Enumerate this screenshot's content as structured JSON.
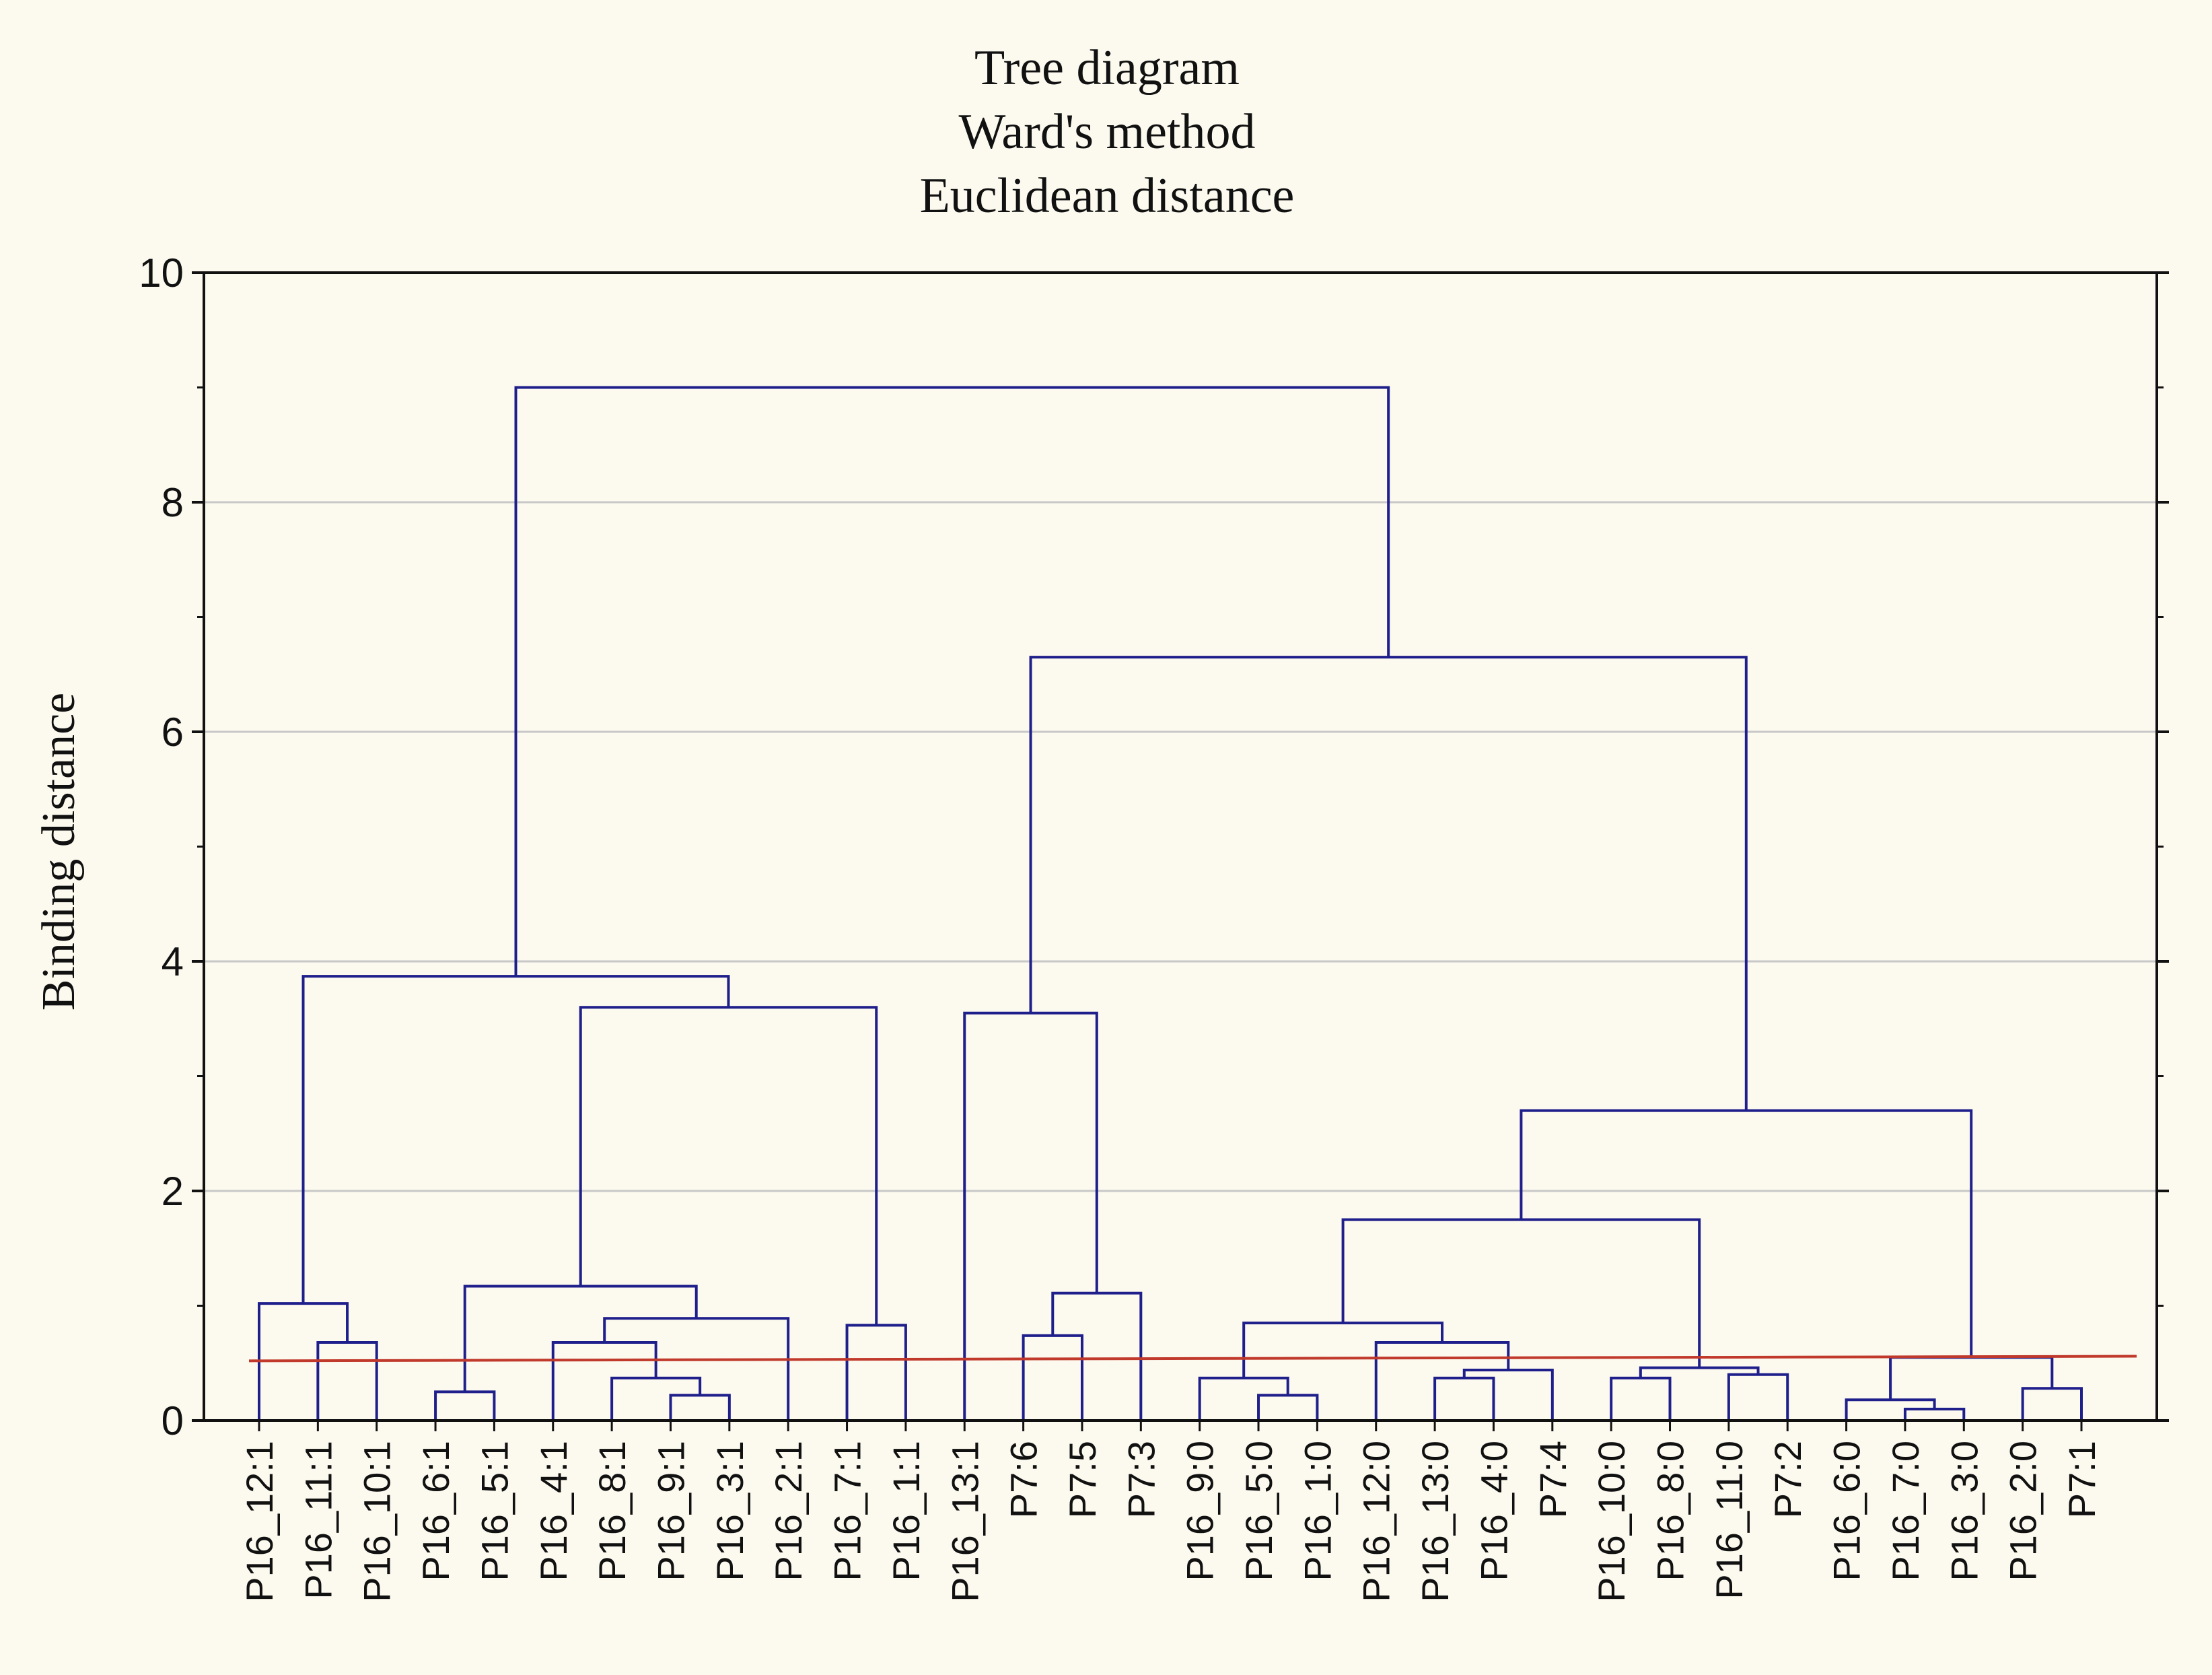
{
  "chart_data": {
    "type": "dendrogram",
    "title_lines": [
      "Tree diagram",
      "Ward's method",
      "Euclidean distance"
    ],
    "ylabel": "Binding distance",
    "xlabel": "",
    "ylim": [
      0,
      10
    ],
    "y_ticks": [
      0,
      2,
      4,
      6,
      8,
      10
    ],
    "grid": "horizontal",
    "colors": {
      "tree": "#1f1f8c",
      "cut_line": "#c0392b",
      "grid": "#c8c8c8",
      "axis": "#111111"
    },
    "leaves": [
      "P16_12:1",
      "P16_11:1",
      "P16_10:1",
      "P16_6:1",
      "P16_5:1",
      "P16_4:1",
      "P16_8:1",
      "P16_9:1",
      "P16_3:1",
      "P16_2:1",
      "P16_7:1",
      "P16_1:1",
      "P16_13:1",
      "P7:6",
      "P7:5",
      "P7:3",
      "P16_9:0",
      "P16_5:0",
      "P16_1:0",
      "P16_12:0",
      "P16_13:0",
      "P16_4:0",
      "P7:4",
      "P16_10:0",
      "P16_8:0",
      "P16_11:0",
      "P7:2",
      "P16_6:0",
      "P16_7:0",
      "P16_3:0",
      "P16_2:0",
      "P7:1"
    ],
    "merges": [
      {
        "a": "P16_11:1",
        "b": "P16_10:1",
        "h": 0.68,
        "id": "m1"
      },
      {
        "a": "P16_12:1",
        "b": "m1",
        "h": 1.02,
        "id": "m2"
      },
      {
        "a": "P16_6:1",
        "b": "P16_5:1",
        "h": 0.25,
        "id": "m3"
      },
      {
        "a": "P16_9:1",
        "b": "P16_3:1",
        "h": 0.22,
        "id": "m4"
      },
      {
        "a": "P16_8:1",
        "b": "m4",
        "h": 0.37,
        "id": "m5"
      },
      {
        "a": "P16_4:1",
        "b": "m5",
        "h": 0.68,
        "id": "m6"
      },
      {
        "a": "m6",
        "b": "P16_2:1",
        "h": 0.89,
        "id": "m7"
      },
      {
        "a": "m3",
        "b": "m7",
        "h": 1.17,
        "id": "m8"
      },
      {
        "a": "P16_7:1",
        "b": "P16_1:1",
        "h": 0.83,
        "id": "m9"
      },
      {
        "a": "m8",
        "b": "m9",
        "h": 3.6,
        "id": "m10"
      },
      {
        "a": "m2",
        "b": "m10",
        "h": 3.87,
        "id": "m11"
      },
      {
        "a": "P7:6",
        "b": "P7:5",
        "h": 0.74,
        "id": "m12"
      },
      {
        "a": "m12",
        "b": "P7:3",
        "h": 1.11,
        "id": "m13"
      },
      {
        "a": "P16_13:1",
        "b": "m13",
        "h": 3.55,
        "id": "m14"
      },
      {
        "a": "P16_5:0",
        "b": "P16_1:0",
        "h": 0.22,
        "id": "m15"
      },
      {
        "a": "P16_9:0",
        "b": "m15",
        "h": 0.37,
        "id": "m16"
      },
      {
        "a": "P16_13:0",
        "b": "P16_4:0",
        "h": 0.37,
        "id": "m17"
      },
      {
        "a": "m17",
        "b": "P7:4",
        "h": 0.44,
        "id": "m18"
      },
      {
        "a": "P16_12:0",
        "b": "m18",
        "h": 0.68,
        "id": "m19"
      },
      {
        "a": "m16",
        "b": "m19",
        "h": 0.85,
        "id": "m20"
      },
      {
        "a": "P16_10:0",
        "b": "P16_8:0",
        "h": 0.37,
        "id": "m21"
      },
      {
        "a": "P16_11:0",
        "b": "P7:2",
        "h": 0.4,
        "id": "m22"
      },
      {
        "a": "m21",
        "b": "m22",
        "h": 0.46,
        "id": "m23"
      },
      {
        "a": "m20",
        "b": "m23",
        "h": 1.75,
        "id": "m24"
      },
      {
        "a": "P16_3:0",
        "b": "P16_7:0",
        "h": 0.1,
        "id": "m25"
      },
      {
        "a": "P16_6:0",
        "b": "m25",
        "h": 0.18,
        "id": "m26"
      },
      {
        "a": "P16_2:0",
        "b": "P7:1",
        "h": 0.28,
        "id": "m27"
      },
      {
        "a": "m26",
        "b": "m27",
        "h": 0.55,
        "id": "m28"
      },
      {
        "a": "m24",
        "b": "m28",
        "h": 2.7,
        "id": "m29"
      },
      {
        "a": "m14",
        "b": "m29",
        "h": 6.65,
        "id": "m30"
      },
      {
        "a": "m11",
        "b": "m30",
        "h": 9.0,
        "id": "m31"
      }
    ],
    "cut_line": {
      "from": 0.52,
      "to": 0.56
    }
  }
}
